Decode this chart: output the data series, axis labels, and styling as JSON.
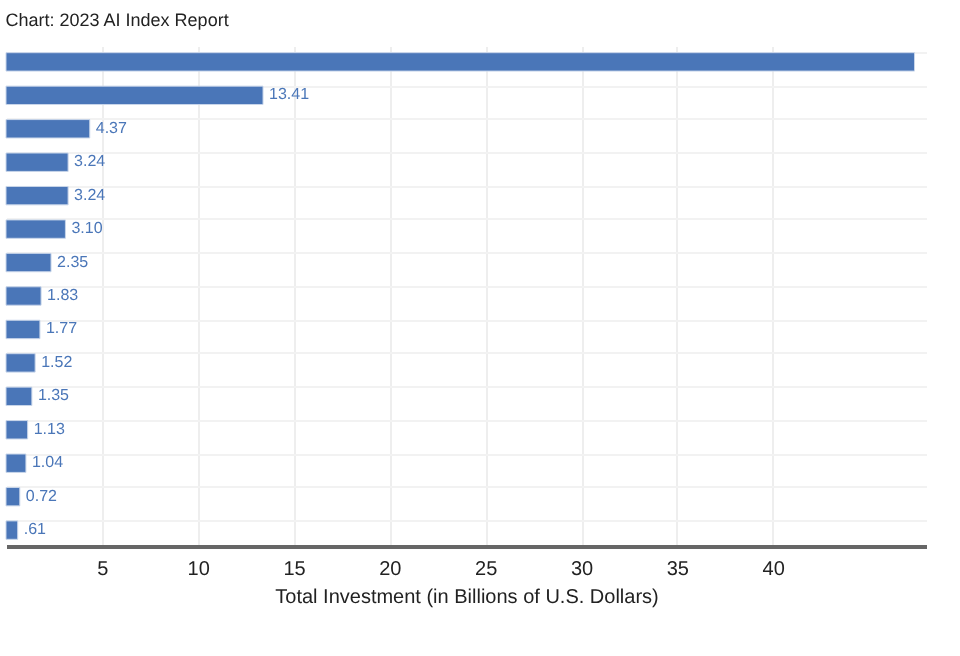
{
  "chart_data": {
    "type": "bar",
    "orientation": "horizontal",
    "annotations": [
      "Chart: 2023 AI Index Report"
    ],
    "xlabel": "Total Investment (in Billions of U.S. Dollars)",
    "categories": [
      null,
      null,
      null,
      null,
      null,
      null,
      null,
      null,
      null,
      null,
      null,
      null,
      null,
      null,
      null
    ],
    "values": [
      47.4,
      13.41,
      4.37,
      3.24,
      3.24,
      3.1,
      2.35,
      1.83,
      1.77,
      1.52,
      1.35,
      1.13,
      1.04,
      0.72,
      0.61
    ],
    "value_labels": [
      null,
      "13.41",
      "4.37",
      "3.24",
      "3.24",
      "3.10",
      "2.35",
      "1.83",
      "1.77",
      "1.52",
      "1.35",
      "1.13",
      "1.04",
      "0.72",
      ".61"
    ],
    "color": "#4a76b8",
    "xlim": [
      0,
      48
    ],
    "xticks": [
      5,
      10,
      15,
      20,
      25,
      30,
      35,
      40
    ],
    "grid": true
  }
}
